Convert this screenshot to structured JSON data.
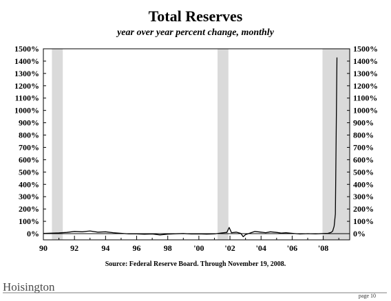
{
  "chart_data": {
    "type": "line",
    "title": "Total Reserves",
    "subtitle": "year over year percent change, monthly",
    "source": "Source: Federal Reserve Board. Through November 19, 2008.",
    "ylim": [
      0,
      1500
    ],
    "xlim": [
      1990,
      2009.7
    ],
    "y_ticks": [
      0,
      100,
      200,
      300,
      400,
      500,
      600,
      700,
      800,
      900,
      1000,
      1100,
      1200,
      1300,
      1400,
      1500
    ],
    "y_tick_labels": [
      "0%",
      "100%",
      "200%",
      "300%",
      "400%",
      "500%",
      "600%",
      "700%",
      "800%",
      "900%",
      "1000%",
      "1100%",
      "1200%",
      "1300%",
      "1400%",
      "1500%"
    ],
    "x_ticks": [
      1990,
      1992,
      1994,
      1996,
      1998,
      2000,
      2002,
      2004,
      2006,
      2008
    ],
    "x_tick_labels": [
      "90",
      "92",
      "94",
      "96",
      "98",
      "'00",
      "'02",
      "'04",
      "'06",
      "'08"
    ],
    "recessions": [
      [
        1990.55,
        1991.25
      ],
      [
        2001.2,
        2001.9
      ],
      [
        2007.95,
        2009.7
      ]
    ],
    "grid": false,
    "legend": "none",
    "series": [
      {
        "x": [
          1990.0,
          1990.5,
          1991.0,
          1991.5,
          1992.0,
          1992.5,
          1993.0,
          1993.5,
          1994.0,
          1994.5,
          1995.0,
          1995.5,
          1996.0,
          1996.5,
          1997.0,
          1997.5,
          1998.0,
          1998.5,
          1999.0,
          1999.5,
          2000.0,
          2000.5,
          2001.0,
          2001.5,
          2001.8,
          2001.95,
          2002.1,
          2002.4,
          2002.7,
          2002.85,
          2003.0,
          2003.3,
          2003.6,
          2004.0,
          2004.3,
          2004.6,
          2005.0,
          2005.3,
          2005.6,
          2006.0,
          2006.5,
          2007.0,
          2007.5,
          2008.0,
          2008.3,
          2008.5,
          2008.6,
          2008.7,
          2008.78,
          2008.88
        ],
        "values": [
          2,
          4,
          6,
          10,
          18,
          15,
          22,
          12,
          15,
          8,
          3,
          -2,
          -2,
          -5,
          -3,
          -10,
          -4,
          -1,
          1,
          -3,
          -2,
          -4,
          -2,
          6,
          10,
          50,
          8,
          12,
          2,
          -25,
          -8,
          5,
          18,
          12,
          8,
          15,
          10,
          5,
          8,
          3,
          -3,
          0,
          -2,
          1,
          3,
          10,
          20,
          60,
          160,
          1430
        ]
      }
    ]
  },
  "footer": {
    "logo_text": "Hoisington",
    "page_label": "page 10"
  }
}
